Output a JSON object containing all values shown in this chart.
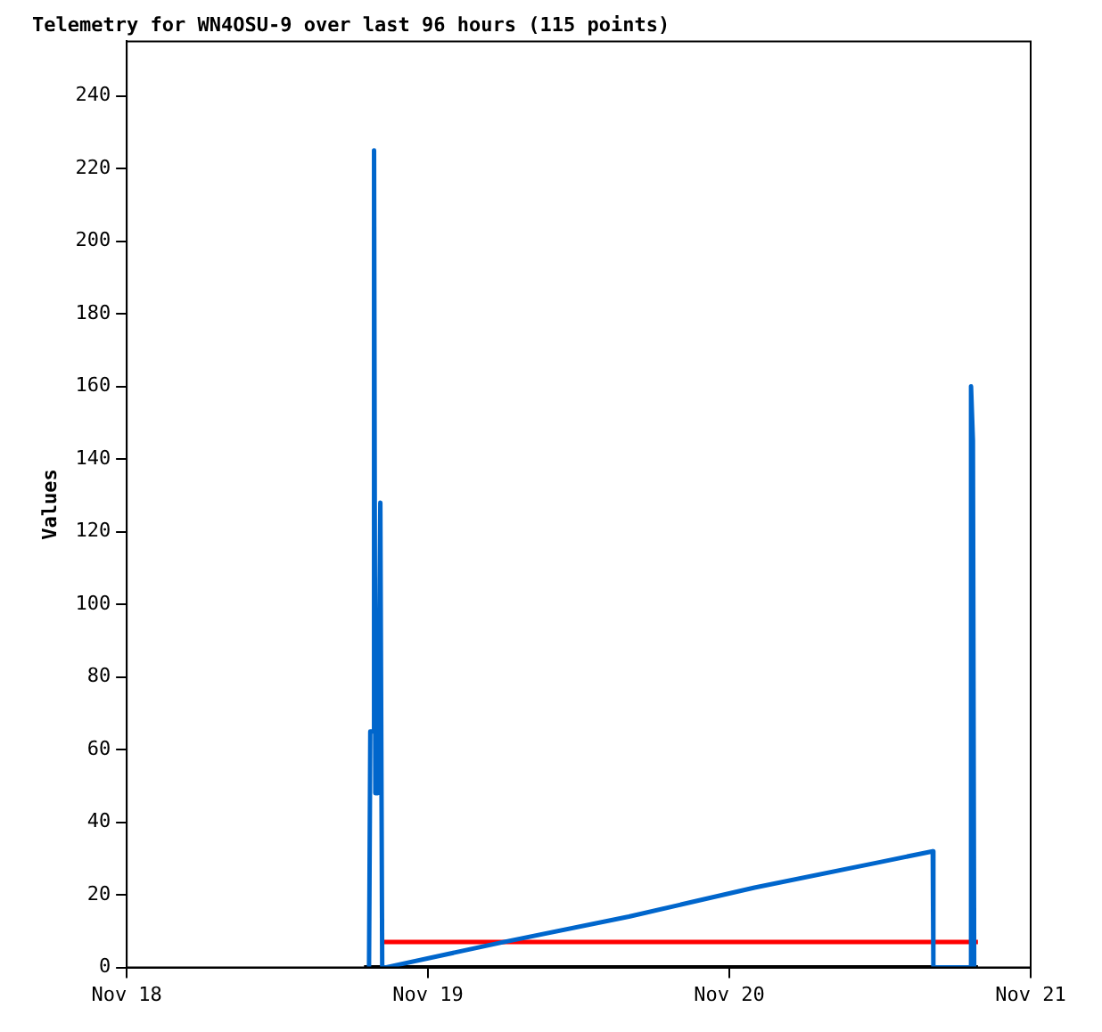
{
  "chart_data": {
    "type": "line",
    "title": "Telemetry for WN4OSU-9 over last 96 hours (115 points)",
    "ylabel": "Values",
    "series": [
      {
        "color": "#0066cc",
        "x": [
          "--11-18T19:18",
          "--11-18T19:24",
          "--11-18T19:36",
          "--11-18T19:42",
          "--11-18T19:48",
          "--11-18T20:00",
          "--11-18T20:12",
          "--11-18T20:21",
          "--11-18T20:36",
          "--11-19T06:00",
          "--11-19T16:00",
          "--11-20T02:00",
          "--11-20T12:00",
          "--11-20T16:12",
          "--11-20T16:15",
          "--11-20T19:12",
          "--11-20T19:15",
          "--11-20T19:24",
          "--11-20T19:30"
        ],
        "values": [
          0,
          65,
          65,
          225,
          48,
          48,
          128,
          0,
          0,
          7,
          14,
          22,
          29,
          32,
          0,
          0,
          160,
          145,
          0
        ]
      },
      {
        "color": "#ff0000",
        "x": [
          "--11-18T20:27",
          "--11-20T19:48"
        ],
        "values": [
          7,
          7
        ]
      },
      {
        "color": "#000000",
        "x": [
          "--11-18T18:54",
          "--11-20T19:48"
        ],
        "values": [
          0,
          0
        ]
      }
    ],
    "xlim": [
      "--11-18",
      "--11-21"
    ],
    "xticks": [
      {
        "value": "--11-18",
        "label": "Nov 18"
      },
      {
        "value": "--11-19",
        "label": "Nov 19"
      },
      {
        "value": "--11-20",
        "label": "Nov 20"
      },
      {
        "value": "--11-21",
        "label": "Nov 21"
      }
    ],
    "ylim": [
      0,
      255
    ],
    "yticks": [
      0,
      20,
      40,
      60,
      80,
      100,
      120,
      140,
      160,
      180,
      200,
      220,
      240
    ],
    "grid": false,
    "legend": false,
    "marker": "none",
    "line_style": "solid"
  }
}
